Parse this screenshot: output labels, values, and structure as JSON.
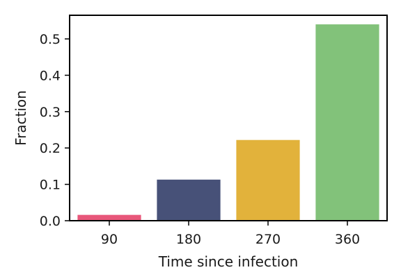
{
  "chart_data": {
    "type": "bar",
    "categories": [
      "90",
      "180",
      "270",
      "360"
    ],
    "values": [
      0.016,
      0.113,
      0.222,
      0.54
    ],
    "colors": [
      "#e8577a",
      "#475178",
      "#e2b23b",
      "#82c27a"
    ],
    "title": "",
    "xlabel": "Time since infection",
    "ylabel": "Fraction",
    "ylim": [
      0,
      0.565
    ],
    "yticks": [
      0.0,
      0.1,
      0.2,
      0.3,
      0.4,
      0.5
    ],
    "ytick_labels": [
      "0.0",
      "0.1",
      "0.2",
      "0.3",
      "0.4",
      "0.5"
    ],
    "grid": false,
    "legend": "none"
  }
}
